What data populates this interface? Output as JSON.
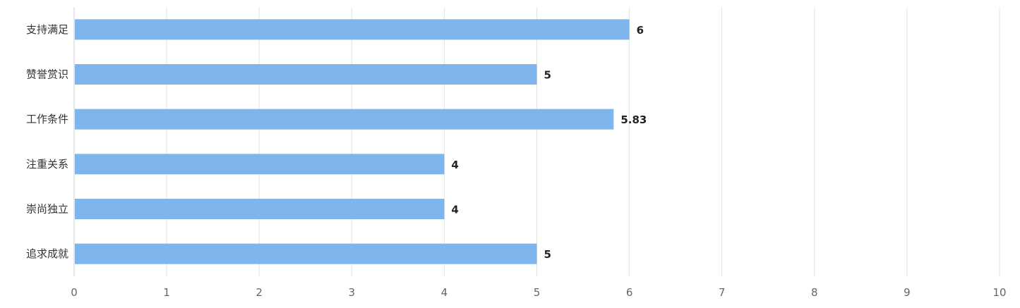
{
  "chart_data": {
    "type": "bar",
    "orientation": "horizontal",
    "categories": [
      "支持满足",
      "赞誉赏识",
      "工作条件",
      "注重关系",
      "崇尚独立",
      "追求成就"
    ],
    "values": [
      6,
      5,
      5.83,
      4,
      4,
      5
    ],
    "value_labels": [
      "6",
      "5",
      "5.83",
      "4",
      "4",
      "5"
    ],
    "xlim": [
      0,
      10
    ],
    "x_ticks": [
      "0",
      "1",
      "2",
      "3",
      "4",
      "5",
      "6",
      "7",
      "8",
      "9",
      "10"
    ],
    "grid": "vertical",
    "legend": "none",
    "bar_color": "#7db5ec"
  }
}
